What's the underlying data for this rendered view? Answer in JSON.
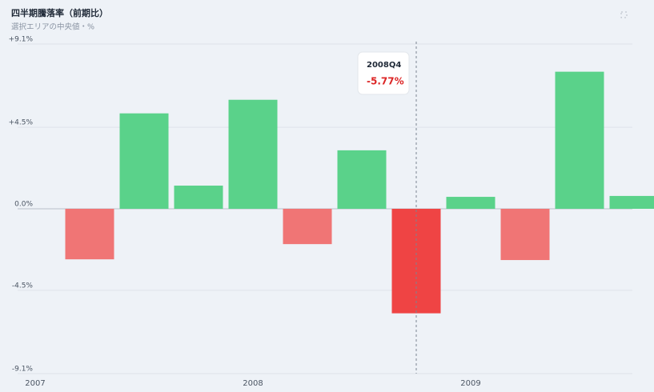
{
  "chart_data": {
    "type": "bar",
    "title": "四半期騰落率（前期比）",
    "subtitle": "選択エリアの中央値・%",
    "categories": [
      "2007",
      null,
      null,
      null,
      "2008",
      null,
      null,
      null,
      "2009",
      null,
      null,
      null
    ],
    "values": [
      null,
      -2.79,
      5.27,
      1.28,
      6.02,
      -1.95,
      3.23,
      -5.77,
      0.66,
      -2.83,
      7.57,
      0.71
    ],
    "positive_color": "#5ad28a",
    "negative_color": "#f07575",
    "highlight_color": "#ef4444",
    "ylim": [
      -9.1,
      9.1
    ],
    "yticks": [
      {
        "value": 9.1,
        "label": "+9.1%"
      },
      {
        "value": 4.5,
        "label": "+4.5%"
      },
      {
        "value": 0,
        "label": "0.0%"
      },
      {
        "value": -4.5,
        "label": "-4.5%"
      },
      {
        "value": -9.1,
        "label": "-9.1%"
      }
    ],
    "grid": true,
    "tooltip": {
      "title": "2008Q4",
      "value": -5.77,
      "value_label": "-5.77%"
    }
  }
}
